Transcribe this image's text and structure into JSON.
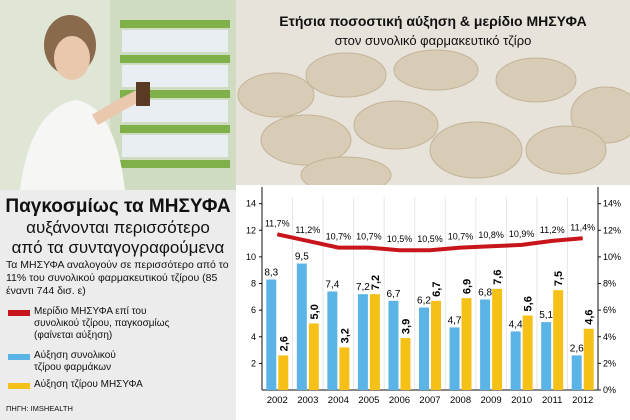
{
  "chart_data": {
    "type": "bar_line",
    "title": "Ετήσια ποσοστική αύξηση & μερίδιο ΜΗΣΥΦΑ",
    "subtitle": "στον συνολικό φαρμακευτικό τζίρο",
    "headline": [
      "Παγκοσμίως τα ΜΗΣΥΦΑ",
      "αυξάνονται περισσότερο",
      "από τα συνταγογραφούμενα"
    ],
    "description": "Τα ΜΗΣΥΦΑ αναλογούν σε περισσότερο από το 11% του συνολικού φαρμακευτικού τζίρου (85 έναντι 744 δισ. ε)",
    "source": "ΠΗΓΗ: IMSHEALTH",
    "categories": [
      "2002",
      "2003",
      "2004",
      "2005",
      "2006",
      "2007",
      "2008",
      "2009",
      "2010",
      "2011",
      "2012"
    ],
    "series": [
      {
        "name": "Μερίδιο ΜΗΣΥΦΑ επί του συνολικού τζίρου, παγκοσμίως (φαίνεται αύξηση)",
        "color": "#c8151b",
        "axis": "y2",
        "kind": "line",
        "values": [
          11.7,
          11.2,
          10.7,
          10.7,
          10.5,
          10.5,
          10.7,
          10.8,
          10.9,
          11.2,
          11.4
        ],
        "value_labels": [
          "11,7%",
          "11,2%",
          "10,7%",
          "10,7%",
          "10,5%",
          "10,5%",
          "10,7%",
          "10,8%",
          "10,9%",
          "11,2%",
          "11,4%"
        ]
      },
      {
        "name": "Αύξηση συνολικού τζίρου φαρμάκων",
        "color": "#5ab4e5",
        "kind": "bar",
        "values": [
          8.3,
          9.5,
          7.4,
          7.2,
          6.7,
          6.2,
          4.7,
          6.8,
          4.4,
          5.1,
          2.6
        ],
        "value_labels": [
          "8,3",
          "9,5",
          "7,4",
          "7,2",
          "6,7",
          "6,2",
          "4,7",
          "6,8",
          "4,4",
          "5,1",
          "2,6"
        ]
      },
      {
        "name": "Αύξηση τζίρου ΜΗΣΥΦΑ",
        "color": "#f5c118",
        "kind": "bar",
        "values": [
          2.6,
          5.0,
          3.2,
          7.2,
          3.9,
          6.7,
          6.9,
          7.6,
          5.6,
          7.5,
          4.6
        ],
        "value_labels": [
          "2,6",
          "5,0",
          "3,2",
          "7,2",
          "3,9",
          "6,7",
          "6,9",
          "7,6",
          "5,6",
          "7,5",
          "4,6"
        ]
      }
    ],
    "ylim": [
      0,
      14.5
    ],
    "yticks": [
      2,
      4,
      6,
      8,
      10,
      12,
      14
    ],
    "y2lim": [
      0,
      14.5
    ],
    "y2ticks": [
      {
        "value": 0,
        "label": "0%"
      },
      {
        "value": 2,
        "label": "2%"
      },
      {
        "value": 4,
        "label": "4%"
      },
      {
        "value": 6,
        "label": "6%"
      },
      {
        "value": 8,
        "label": "8%"
      },
      {
        "value": 10,
        "label": "10%"
      },
      {
        "value": 12,
        "label": "12%"
      },
      {
        "value": 14,
        "label": "14%"
      }
    ]
  }
}
